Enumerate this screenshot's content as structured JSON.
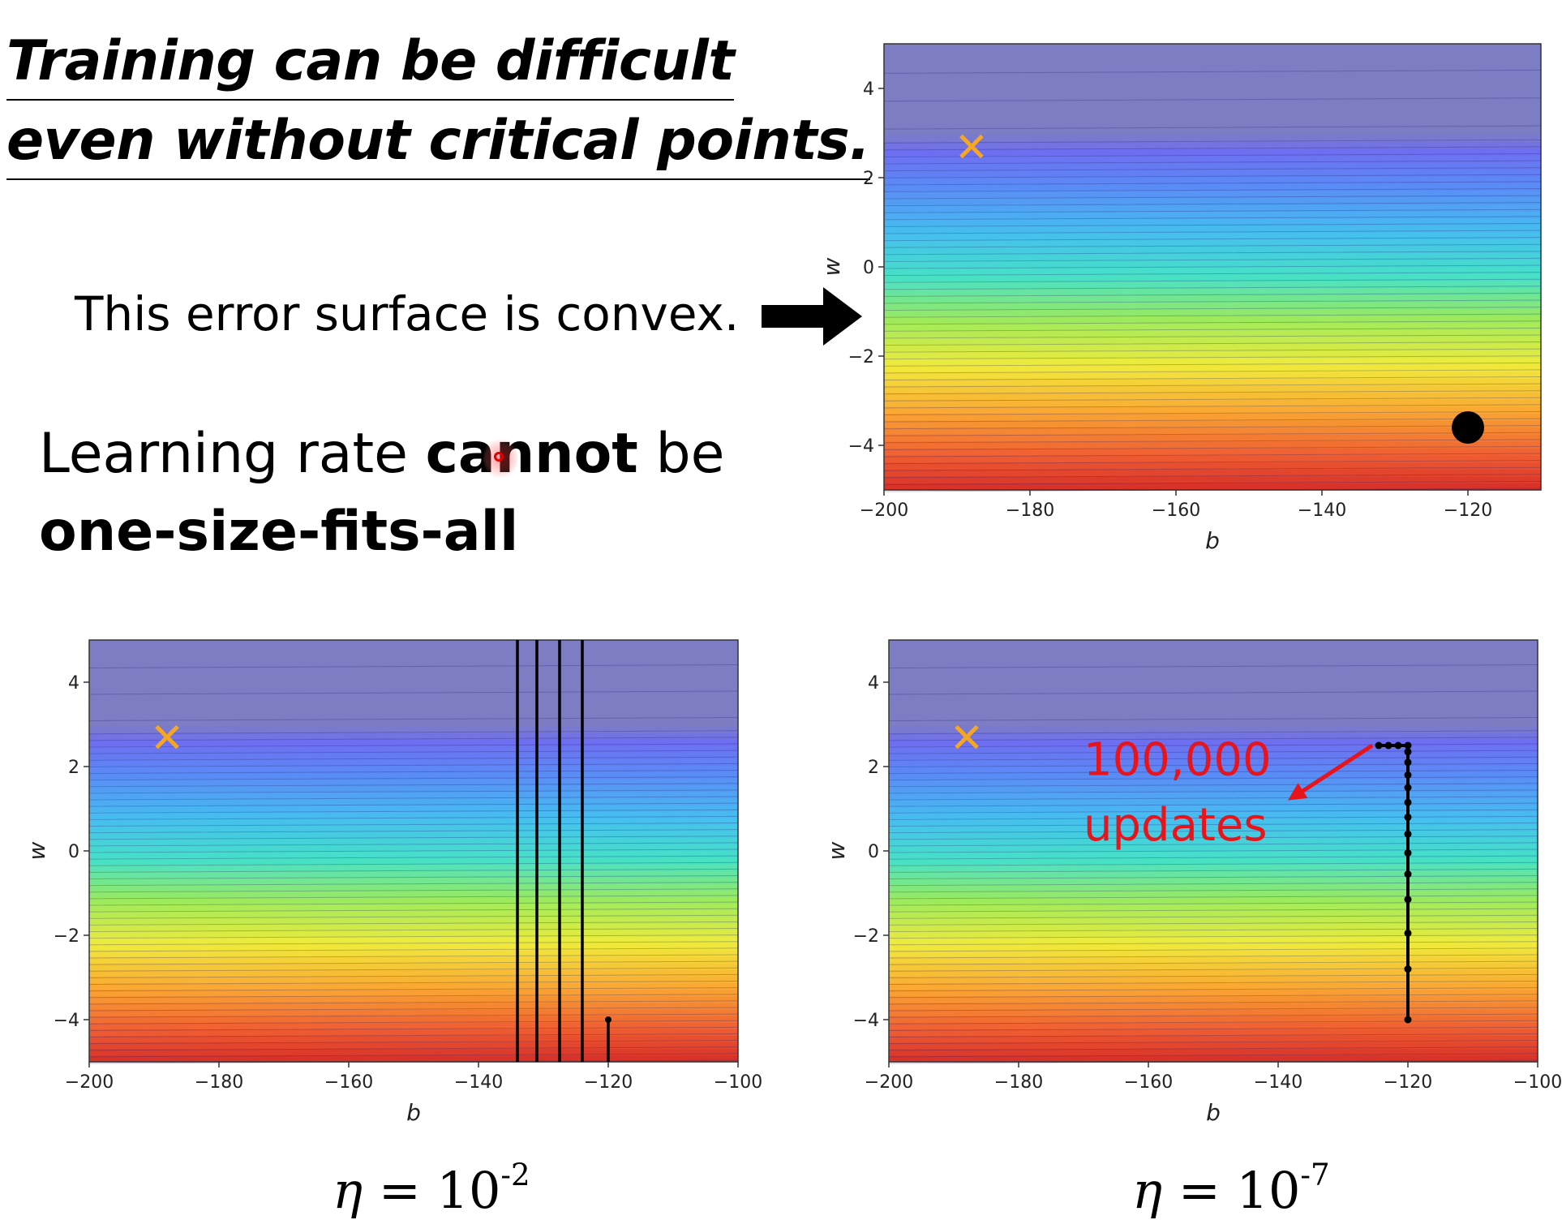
{
  "slide": {
    "title_line1": "Training can be difficult",
    "title_line2": "even without critical points.",
    "convex_text": "This error surface is convex.",
    "lr_text_a": "Learning rate ",
    "lr_text_b": "cannot",
    "lr_text_c": " be",
    "lr_text_line2": "one-size-fits-all",
    "eta_symbol": "η",
    "eta_equals": " = 10",
    "eta1_exp": "-2",
    "eta2_exp": "-7"
  },
  "chart_data": [
    {
      "id": "top",
      "type": "contour",
      "xlabel": "b",
      "ylabel": "w",
      "xlim": [
        -200,
        -110
      ],
      "ylim": [
        -5,
        5
      ],
      "xticks": [
        -200,
        -180,
        -160,
        -140,
        -120
      ],
      "xtick_labels": [
        "−200",
        "−180",
        "−160",
        "−140",
        "−120"
      ],
      "yticks": [
        4,
        2,
        0,
        -2,
        -4
      ],
      "ytick_labels": [
        "4",
        "2",
        "0",
        "−2",
        "−4"
      ],
      "minimum_marker": {
        "b": -188,
        "w": 2.7,
        "color": "#f5a623"
      },
      "start_point": {
        "b": -120,
        "w": -3.6
      }
    },
    {
      "id": "bl",
      "type": "contour",
      "xlabel": "b",
      "ylabel": "w",
      "xlim": [
        -200,
        -100
      ],
      "ylim": [
        -5,
        5
      ],
      "xticks": [
        -200,
        -180,
        -160,
        -140,
        -120,
        -100
      ],
      "xtick_labels": [
        "−200",
        "−180",
        "−160",
        "−140",
        "−120",
        "−100"
      ],
      "yticks": [
        4,
        2,
        0,
        -2,
        -4
      ],
      "ytick_labels": [
        "4",
        "2",
        "0",
        "−2",
        "−4"
      ],
      "minimum_marker": {
        "b": -188,
        "w": 2.7,
        "color": "#f5a623"
      },
      "path_b_values": [
        -120,
        -124,
        -127.5,
        -131,
        -134
      ],
      "path_start": {
        "b": -120,
        "w": -4
      },
      "path_end_w": -5
    },
    {
      "id": "br",
      "type": "contour",
      "xlabel": "b",
      "ylabel": "w",
      "xlim": [
        -200,
        -100
      ],
      "ylim": [
        -5,
        5
      ],
      "xticks": [
        -200,
        -180,
        -160,
        -140,
        -120,
        -100
      ],
      "xtick_labels": [
        "−200",
        "−180",
        "−160",
        "−140",
        "−120",
        "−100"
      ],
      "yticks": [
        4,
        2,
        0,
        -2,
        -4
      ],
      "ytick_labels": [
        "4",
        "2",
        "0",
        "−2",
        "−4"
      ],
      "minimum_marker": {
        "b": -188,
        "w": 2.7,
        "color": "#f5a623"
      },
      "path_points": [
        {
          "b": -120,
          "w": -4
        },
        {
          "b": -120,
          "w": -2.8
        },
        {
          "b": -120,
          "w": -1.95
        },
        {
          "b": -120,
          "w": -1.15
        },
        {
          "b": -120,
          "w": -0.55
        },
        {
          "b": -120,
          "w": -0.05
        },
        {
          "b": -120,
          "w": 0.4
        },
        {
          "b": -120,
          "w": 0.8
        },
        {
          "b": -120,
          "w": 1.15
        },
        {
          "b": -120,
          "w": 1.5
        },
        {
          "b": -120,
          "w": 1.8
        },
        {
          "b": -120,
          "w": 2.1
        },
        {
          "b": -120,
          "w": 2.35
        },
        {
          "b": -120,
          "w": 2.5
        },
        {
          "b": -121.5,
          "w": 2.5
        },
        {
          "b": -123,
          "w": 2.5
        },
        {
          "b": -124.5,
          "w": 2.5
        }
      ],
      "annotation_line1": "100,000",
      "annotation_line2": "updates",
      "annotation_color": "#e8141c"
    }
  ]
}
